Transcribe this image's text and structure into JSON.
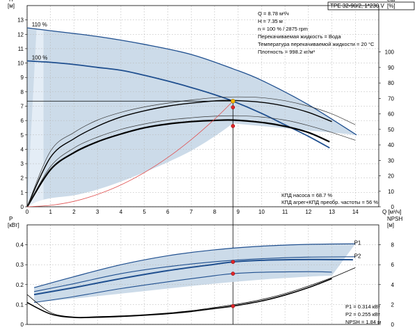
{
  "header": {
    "model": "TPE 32-90/2, 1*230 V",
    "params": [
      "Q = 8.78 м³/ч",
      "H = 7.35 м",
      "n = 100 % / 2875 rpm",
      "Перекачиваемая жидкость = Вода",
      "Температура перекачиваемой жидкости = 20 °C",
      "Плотность = 998.2 кг/м³"
    ]
  },
  "colors": {
    "band": "#c9d9e8",
    "band_light": "#e4edf6",
    "curve_blue": "#1f4f8f",
    "duty_point": "#f4b400",
    "marker": "#e0262a",
    "system_curve": "#e05050",
    "grid": "#b8b8b8"
  },
  "chart_data": [
    {
      "type": "line",
      "panel": "top",
      "left_axis_label": "H\n[м]",
      "right_axis_label": "eta\n[%]",
      "x_axis_label": "Q [м³/ч]",
      "x_ticks": [
        0,
        1,
        2,
        3,
        4,
        5,
        6,
        7,
        8,
        9,
        10,
        11,
        12,
        13,
        14
      ],
      "xlim": [
        0,
        15
      ],
      "left_ticks": [
        0,
        1,
        2,
        3,
        4,
        5,
        6,
        7,
        8,
        9,
        10,
        11,
        12,
        13
      ],
      "ylim": [
        0,
        14
      ],
      "right_ticks": [
        0,
        10,
        20,
        30,
        40,
        50,
        60,
        70,
        80,
        90,
        100
      ],
      "right_ylim": [
        0,
        130
      ],
      "grid": true,
      "curve_labels": [
        "110 %",
        "100 %"
      ],
      "series": [
        {
          "name": "110 %",
          "style": "band_edge",
          "x": [
            0,
            1,
            3,
            5,
            7,
            8.78,
            10,
            12,
            14.05
          ],
          "y": [
            12.45,
            12.25,
            11.85,
            11.3,
            10.6,
            9.6,
            8.8,
            7.1,
            5.0
          ]
        },
        {
          "name": "100 %",
          "style": "pump",
          "x": [
            0,
            1,
            2,
            3,
            4,
            5,
            6,
            7,
            8,
            8.78,
            10,
            11,
            12,
            12.9
          ],
          "y": [
            10.15,
            10.05,
            9.9,
            9.7,
            9.5,
            9.15,
            8.75,
            8.3,
            7.8,
            7.35,
            6.5,
            5.7,
            4.9,
            4.1
          ]
        },
        {
          "name": "КПД насоса",
          "style": "eff",
          "axis": "right",
          "x": [
            0,
            1,
            2,
            3,
            4,
            5,
            6,
            7,
            8,
            8.78,
            10,
            11,
            12,
            13
          ],
          "y": [
            0,
            32,
            44,
            52,
            58,
            62,
            65,
            67,
            68.4,
            68.7,
            67.5,
            65,
            61,
            55
          ]
        },
        {
          "name": "КПД агрег+КПД преобр. частоты",
          "style": "eff_thick",
          "axis": "right",
          "x": [
            0,
            1,
            2,
            3,
            4,
            5,
            6,
            7,
            8,
            8.78,
            10,
            11,
            12,
            12.9
          ],
          "y": [
            0,
            24,
            35,
            42,
            47,
            51,
            53.5,
            55,
            55.8,
            56,
            54.5,
            52,
            48,
            42
          ]
        },
        {
          "name": "eff_upper",
          "style": "eff_thin",
          "axis": "right",
          "x": [
            0,
            1,
            2,
            3,
            4,
            5,
            6,
            7,
            8,
            9,
            10,
            11,
            12,
            13,
            14
          ],
          "y": [
            0,
            36,
            48,
            56,
            61,
            64.5,
            67,
            69,
            70.5,
            71,
            70.5,
            68.5,
            65,
            60,
            53
          ]
        },
        {
          "name": "eff_lower",
          "style": "eff_thin",
          "axis": "right",
          "x": [
            0,
            1,
            2,
            3,
            4,
            5,
            6,
            7,
            8,
            9,
            10,
            11,
            12,
            13,
            14
          ],
          "y": [
            0,
            26,
            38,
            45,
            50,
            53.5,
            56,
            57.5,
            58.5,
            58.8,
            58,
            56,
            52.5,
            48,
            43
          ]
        },
        {
          "name": "system",
          "style": "system",
          "x": [
            0,
            1,
            2,
            3,
            4,
            5,
            6,
            7,
            8,
            8.78
          ],
          "y": [
            0,
            0.1,
            0.38,
            0.86,
            1.52,
            2.38,
            3.43,
            4.67,
            6.1,
            7.35
          ]
        }
      ],
      "band_lower": {
        "x": [
          0,
          0.4,
          1,
          2,
          3,
          4,
          5,
          6,
          7,
          8,
          8.78
        ],
        "y": [
          0,
          0.35,
          0.6,
          0.8,
          1.2,
          1.75,
          2.4,
          3.1,
          3.9,
          4.9,
          5.8
        ]
      },
      "band_light": {
        "x": [
          0,
          0.4,
          0.7,
          0.7,
          0.4,
          0
        ],
        "y": [
          0,
          12.3,
          12.3,
          0.5,
          0.35,
          0
        ]
      },
      "duty_point": {
        "x": 8.78,
        "y": 7.35
      },
      "markers": [
        {
          "x": 8.78,
          "y": 6.92
        },
        {
          "x": 8.78,
          "y": 5.62
        }
      ],
      "annotations": [
        "КПД насоса = 68.7 %",
        "КПД агрег+КПД преобр. частоты = 56 %"
      ]
    },
    {
      "type": "line",
      "panel": "bottom",
      "left_axis_label": "P\n[кВт]",
      "right_axis_label": "NPSH\n[м]",
      "xlim": [
        0,
        15
      ],
      "left_ticks": [
        0,
        0.1,
        0.2,
        0.3,
        0.4
      ],
      "ylim": [
        0,
        0.5
      ],
      "right_ticks": [
        0,
        2,
        4,
        6,
        8
      ],
      "right_ylim": [
        0,
        10
      ],
      "grid": true,
      "curve_labels": [
        "P1",
        "P2"
      ],
      "series": [
        {
          "name": "P1",
          "style": "power",
          "x": [
            0.3,
            2,
            4,
            6,
            8,
            8.78,
            10,
            12,
            13.9
          ],
          "y": [
            0.15,
            0.185,
            0.23,
            0.27,
            0.302,
            0.314,
            0.322,
            0.326,
            0.325
          ]
        },
        {
          "name": "P2",
          "style": "power_thin",
          "x": [
            0.3,
            2,
            4,
            6,
            8,
            8.78,
            10,
            12,
            13
          ],
          "y": [
            0.11,
            0.14,
            0.18,
            0.214,
            0.245,
            0.255,
            0.262,
            0.265,
            0.263
          ]
        },
        {
          "name": "P1_110",
          "style": "power_band",
          "x": [
            0.3,
            2,
            4,
            6,
            8,
            10,
            12,
            14
          ],
          "y": [
            0.185,
            0.24,
            0.3,
            0.345,
            0.375,
            0.393,
            0.402,
            0.405
          ]
        },
        {
          "name": "P2_110",
          "style": "power_thin",
          "x": [
            0.3,
            2,
            4,
            6,
            8,
            10,
            12,
            14
          ],
          "y": [
            0.165,
            0.205,
            0.255,
            0.29,
            0.315,
            0.33,
            0.338,
            0.34
          ]
        },
        {
          "name": "NPSH",
          "style": "npsh",
          "axis": "right",
          "x": [
            0,
            1,
            2,
            3,
            4,
            5,
            6,
            7,
            8,
            8.78,
            10,
            11,
            12,
            13
          ],
          "y": [
            2.2,
            1.05,
            0.7,
            0.72,
            0.8,
            0.92,
            1.08,
            1.3,
            1.6,
            1.84,
            2.35,
            2.95,
            3.7,
            4.6
          ]
        },
        {
          "name": "NPSH_110",
          "style": "npsh_thin",
          "axis": "right",
          "x": [
            0,
            1,
            2,
            3,
            4,
            5,
            6,
            7,
            8,
            9,
            10,
            11,
            12,
            13,
            14
          ],
          "y": [
            3.0,
            1.2,
            0.75,
            0.78,
            0.86,
            0.98,
            1.15,
            1.38,
            1.7,
            2.05,
            2.5,
            3.1,
            3.85,
            4.7,
            5.7
          ]
        }
      ],
      "band_lower": {
        "x": [
          0.3,
          2,
          4,
          6,
          8,
          10,
          12,
          13
        ],
        "y": [
          0.11,
          0.13,
          0.155,
          0.18,
          0.205,
          0.225,
          0.24,
          0.245
        ]
      },
      "markers": [
        {
          "x": 8.78,
          "y": 0.314
        },
        {
          "x": 8.78,
          "y": 0.255
        },
        {
          "x": 8.78,
          "y": 0.092
        }
      ],
      "annotations": [
        "P1 = 0.314 кВт",
        "P2 = 0.255 кВт",
        "NPSH = 1.84 м"
      ]
    }
  ]
}
